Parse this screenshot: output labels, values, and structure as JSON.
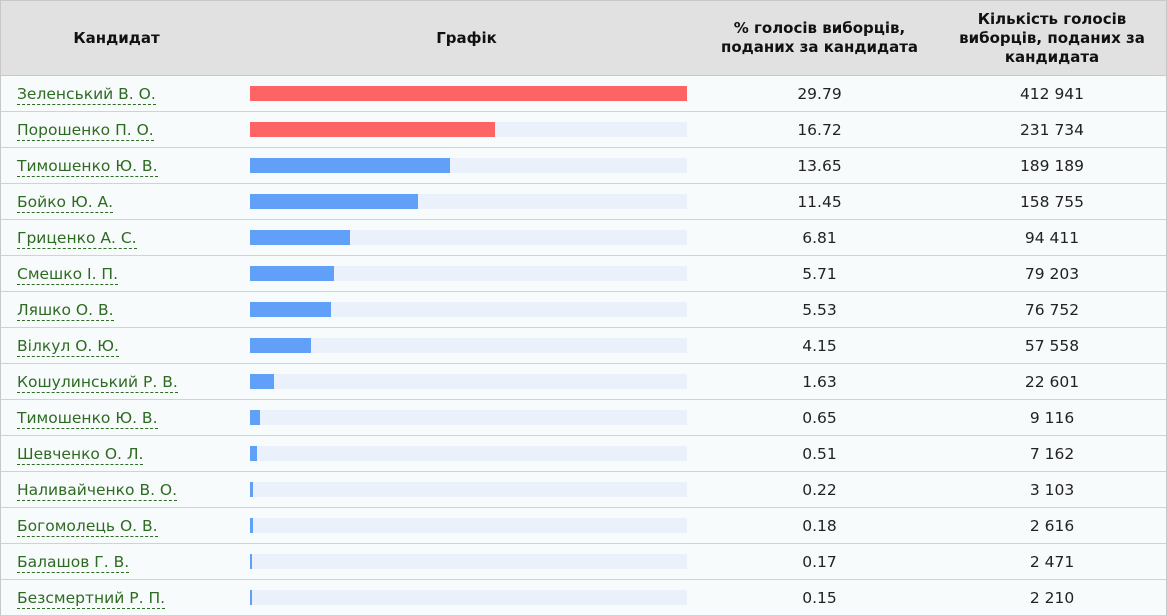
{
  "table": {
    "headers": {
      "candidate": "Кандидат",
      "chart": "Графік",
      "percent": "% голосів виборців, поданих за кандидата",
      "votes": "Кількість голосів виборців, поданих за кандидата"
    },
    "colors": {
      "top": "#ff6464",
      "other": "#60a0f8",
      "track": "#ebf1fa",
      "link": "#2e6b22"
    },
    "rows": [
      {
        "name": "Зеленський В. О.",
        "percent": "29.79",
        "votes": "412 941",
        "highlight": true
      },
      {
        "name": "Порошенко П. О.",
        "percent": "16.72",
        "votes": "231 734",
        "highlight": true
      },
      {
        "name": "Тимошенко Ю. В.",
        "percent": "13.65",
        "votes": "189 189",
        "highlight": false
      },
      {
        "name": "Бойко Ю. А.",
        "percent": "11.45",
        "votes": "158 755",
        "highlight": false
      },
      {
        "name": "Гриценко А. С.",
        "percent": "6.81",
        "votes": "94 411",
        "highlight": false
      },
      {
        "name": "Смешко І. П.",
        "percent": "5.71",
        "votes": "79 203",
        "highlight": false
      },
      {
        "name": "Ляшко О. В.",
        "percent": "5.53",
        "votes": "76 752",
        "highlight": false
      },
      {
        "name": "Вілкул О. Ю.",
        "percent": "4.15",
        "votes": "57 558",
        "highlight": false
      },
      {
        "name": "Кошулинський Р. В.",
        "percent": "1.63",
        "votes": "22 601",
        "highlight": false
      },
      {
        "name": "Тимошенко Ю. В.",
        "percent": "0.65",
        "votes": "9 116",
        "highlight": false
      },
      {
        "name": "Шевченко О. Л.",
        "percent": "0.51",
        "votes": "7 162",
        "highlight": false
      },
      {
        "name": "Наливайченко В. О.",
        "percent": "0.22",
        "votes": "3 103",
        "highlight": false
      },
      {
        "name": "Богомолець О. В.",
        "percent": "0.18",
        "votes": "2 616",
        "highlight": false
      },
      {
        "name": "Балашов Г. В.",
        "percent": "0.17",
        "votes": "2 471",
        "highlight": false
      },
      {
        "name": "Безсмертний Р. П.",
        "percent": "0.15",
        "votes": "2 210",
        "highlight": false
      }
    ]
  },
  "chart_data": {
    "type": "bar",
    "orientation": "horizontal",
    "title": "",
    "xlabel": "% голосів виборців, поданих за кандидата",
    "ylabel": "Кандидат",
    "xlim": [
      0,
      29.79
    ],
    "grid": false,
    "legend": null,
    "categories": [
      "Зеленський В. О.",
      "Порошенко П. О.",
      "Тимошенко Ю. В.",
      "Бойко Ю. А.",
      "Гриценко А. С.",
      "Смешко І. П.",
      "Ляшко О. В.",
      "Вілкул О. Ю.",
      "Кошулинський Р. В.",
      "Тимошенко Ю. В.",
      "Шевченко О. Л.",
      "Наливайченко В. О.",
      "Богомолець О. В.",
      "Балашов Г. В.",
      "Безсмертний Р. П."
    ],
    "series": [
      {
        "name": "% голосів",
        "values": [
          29.79,
          16.72,
          13.65,
          11.45,
          6.81,
          5.71,
          5.53,
          4.15,
          1.63,
          0.65,
          0.51,
          0.22,
          0.18,
          0.17,
          0.15
        ]
      },
      {
        "name": "Кількість голосів",
        "values": [
          412941,
          231734,
          189189,
          158755,
          94411,
          79203,
          76752,
          57558,
          22601,
          9116,
          7162,
          3103,
          2616,
          2471,
          2210
        ]
      }
    ],
    "bar_colors": [
      "#ff6464",
      "#ff6464",
      "#60a0f8",
      "#60a0f8",
      "#60a0f8",
      "#60a0f8",
      "#60a0f8",
      "#60a0f8",
      "#60a0f8",
      "#60a0f8",
      "#60a0f8",
      "#60a0f8",
      "#60a0f8",
      "#60a0f8",
      "#60a0f8"
    ]
  }
}
